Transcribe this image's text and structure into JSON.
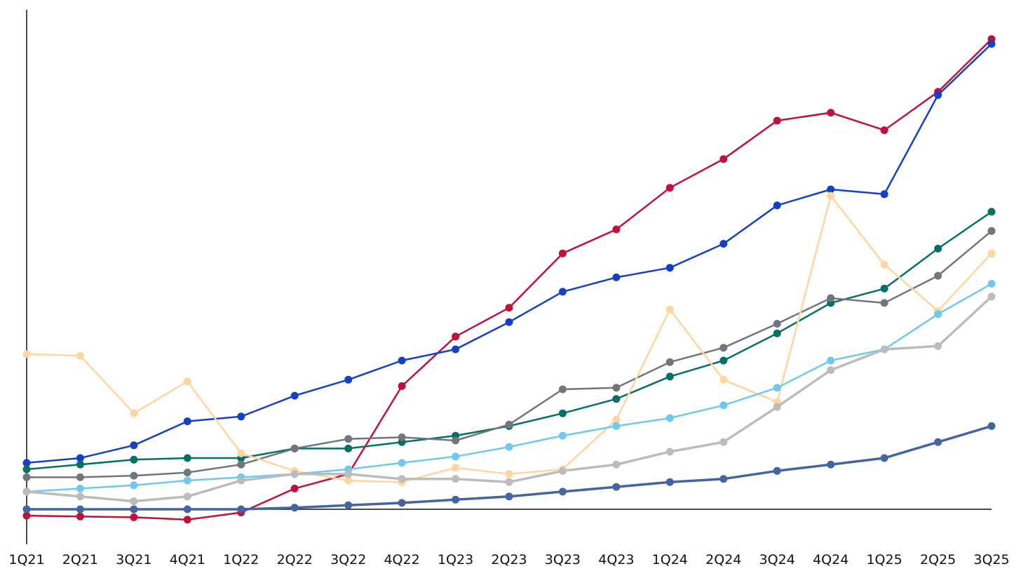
{
  "chart_data": {
    "type": "line",
    "title": "",
    "xlabel": "",
    "ylabel": "",
    "grid": false,
    "legend": "none",
    "ylim": [
      -15,
      300
    ],
    "categories": [
      "1Q21",
      "2Q21",
      "3Q21",
      "4Q21",
      "1Q22",
      "2Q22",
      "3Q22",
      "4Q22",
      "1Q23",
      "2Q23",
      "3Q23",
      "4Q23",
      "1Q24",
      "2Q24",
      "3Q24",
      "4Q24",
      "1Q25",
      "2Q25",
      "3Q25"
    ],
    "series": [
      {
        "name": "red",
        "color": "#c0103c",
        "values": [
          -4,
          -4.5,
          -5,
          -6.5,
          -2,
          13,
          22,
          77,
          108,
          126,
          160,
          175,
          201,
          219,
          243,
          248,
          237,
          261,
          294
        ]
      },
      {
        "name": "blue",
        "color": "#1440c8",
        "values": [
          29,
          32,
          40,
          55,
          58,
          71,
          81,
          93,
          100,
          117,
          136,
          145,
          151,
          166,
          190,
          200,
          197,
          259,
          291
        ]
      },
      {
        "name": "teal",
        "color": "#037164",
        "values": [
          25,
          28,
          31,
          32,
          32,
          38,
          38,
          42,
          46,
          52,
          60,
          69,
          83,
          93,
          110,
          129,
          138,
          163,
          186
        ]
      },
      {
        "name": "dark-gray",
        "color": "#72757e",
        "values": [
          20,
          20,
          21,
          23,
          28,
          38,
          44,
          45,
          43,
          53,
          75,
          76,
          92,
          101,
          116,
          132,
          129,
          146,
          174
        ]
      },
      {
        "name": "peach",
        "color": "#ffd5a0",
        "values": [
          97,
          96,
          60,
          80,
          35,
          24,
          18,
          17,
          26,
          22,
          25,
          56,
          125,
          81,
          67,
          196,
          153,
          124,
          160
        ]
      },
      {
        "name": "light-blue",
        "color": "#6ec8f0",
        "values": [
          11,
          13,
          15,
          18,
          20,
          22,
          25,
          29,
          33,
          39,
          46,
          52,
          57,
          65,
          76,
          93,
          100,
          122,
          141
        ]
      },
      {
        "name": "light-gray",
        "color": "#bcbcbc",
        "values": [
          11,
          8,
          5,
          8,
          18,
          22,
          22,
          19,
          19,
          17,
          24,
          28,
          36,
          42,
          64,
          87,
          100,
          102,
          133
        ]
      },
      {
        "name": "slate",
        "color": "#4565a0",
        "values": [
          0,
          0,
          0,
          0,
          0,
          1,
          2.5,
          4,
          6,
          8,
          11,
          14,
          17,
          19,
          24,
          28,
          32,
          42,
          52
        ]
      }
    ]
  }
}
